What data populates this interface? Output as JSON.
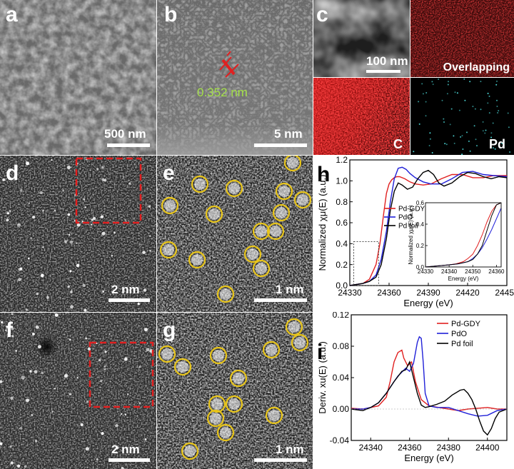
{
  "panels": {
    "a": {
      "label": "a",
      "scalebar": "500 nm"
    },
    "b": {
      "label": "b",
      "scalebar": "5 nm",
      "lattice": "0.352 nm"
    },
    "c": {
      "label": "c",
      "scalebar": "100 nm",
      "maps": [
        "Overlapping",
        "C",
        "Pd"
      ]
    },
    "d": {
      "label": "d",
      "scalebar": "2 nm"
    },
    "e": {
      "label": "e",
      "scalebar": "1 nm"
    },
    "f": {
      "label": "f",
      "scalebar": "2 nm"
    },
    "g": {
      "label": "g",
      "scalebar": "1 nm"
    },
    "h": {
      "label": "h"
    },
    "i": {
      "label": "i"
    }
  },
  "colors": {
    "pd_gdy": "#e02020",
    "pdo": "#2020d8",
    "pd_foil": "#000000",
    "atom_circle": "#e8c51a",
    "box": "#e02020"
  },
  "chart_data": [
    {
      "type": "line",
      "panel": "h",
      "xlabel": "Energy (eV)",
      "ylabel": "Normalized χμ(E) (a.u.)",
      "xlim": [
        24330,
        24450
      ],
      "ylim": [
        0.0,
        1.2
      ],
      "xticks": [
        24330,
        24360,
        24390,
        24420,
        24450
      ],
      "yticks": [
        "0.0",
        "0.2",
        "0.4",
        "0.6",
        "0.8",
        "1.0",
        "1.2"
      ],
      "legend": [
        "Pd-GDY",
        "PdO",
        "Pd foil"
      ],
      "series": [
        {
          "name": "Pd-GDY",
          "x": [
            24330,
            24340,
            24345,
            24350,
            24353,
            24356,
            24358,
            24360,
            24362,
            24364,
            24366,
            24368,
            24372,
            24376,
            24380,
            24386,
            24392,
            24400,
            24408,
            24416,
            24424,
            24432,
            24440,
            24450
          ],
          "y": [
            0.0,
            0.02,
            0.06,
            0.2,
            0.4,
            0.7,
            0.88,
            0.97,
            1.01,
            1.03,
            1.04,
            1.04,
            1.02,
            0.99,
            0.97,
            0.96,
            0.97,
            1.02,
            1.06,
            1.06,
            1.03,
            1.03,
            1.05,
            1.05
          ]
        },
        {
          "name": "PdO",
          "x": [
            24330,
            24340,
            24345,
            24350,
            24354,
            24358,
            24361,
            24364,
            24367,
            24370,
            24373,
            24376,
            24380,
            24386,
            24392,
            24400,
            24408,
            24416,
            24424,
            24432,
            24440,
            24450
          ],
          "y": [
            0.0,
            0.02,
            0.04,
            0.1,
            0.25,
            0.52,
            0.8,
            1.02,
            1.12,
            1.13,
            1.11,
            1.07,
            1.03,
            0.99,
            0.97,
            0.97,
            1.02,
            1.08,
            1.09,
            1.06,
            1.05,
            1.04
          ]
        },
        {
          "name": "Pd foil",
          "x": [
            24330,
            24340,
            24345,
            24350,
            24354,
            24358,
            24361,
            24364,
            24367,
            24370,
            24374,
            24378,
            24382,
            24386,
            24390,
            24394,
            24398,
            24402,
            24408,
            24414,
            24420,
            24426,
            24432,
            24438,
            24444,
            24450
          ],
          "y": [
            0.0,
            0.02,
            0.04,
            0.08,
            0.2,
            0.45,
            0.72,
            0.9,
            0.98,
            0.96,
            0.92,
            0.94,
            1.02,
            1.08,
            1.1,
            1.06,
            0.98,
            0.95,
            0.98,
            1.04,
            1.08,
            1.07,
            1.04,
            1.02,
            1.04,
            1.03
          ]
        }
      ],
      "inset": {
        "xlabel": "Energy (eV)",
        "ylabel": "Normalized χμ(E) (a.u.)",
        "xlim": [
          24330,
          24362
        ],
        "ylim": [
          0.0,
          0.6
        ],
        "xticks": [
          24330,
          24340,
          24350,
          24360
        ],
        "yticks": [
          "0.0",
          "0.2",
          "0.4",
          "0.6"
        ],
        "series": [
          {
            "name": "Pd-GDY",
            "x": [
              24330,
              24335,
              24340,
              24343,
              24346,
              24348,
              24350,
              24352,
              24354,
              24356,
              24358,
              24360,
              24362
            ],
            "y": [
              0.0,
              0.01,
              0.02,
              0.03,
              0.05,
              0.08,
              0.12,
              0.2,
              0.3,
              0.42,
              0.52,
              0.58,
              0.6
            ]
          },
          {
            "name": "PdO",
            "x": [
              24330,
              24335,
              24340,
              24344,
              24348,
              24350,
              24352,
              24354,
              24356,
              24358,
              24360,
              24362
            ],
            "y": [
              0.0,
              0.01,
              0.02,
              0.03,
              0.05,
              0.08,
              0.12,
              0.18,
              0.26,
              0.35,
              0.45,
              0.55
            ]
          },
          {
            "name": "Pd foil",
            "x": [
              24330,
              24335,
              24340,
              24344,
              24348,
              24350,
              24352,
              24354,
              24356,
              24358,
              24360,
              24362
            ],
            "y": [
              0.0,
              0.01,
              0.02,
              0.03,
              0.05,
              0.07,
              0.12,
              0.2,
              0.34,
              0.48,
              0.58,
              0.6
            ]
          }
        ]
      }
    },
    {
      "type": "line",
      "panel": "i",
      "xlabel": "Energy (eV)",
      "ylabel": "Deriv. xu(E) (a.u.)",
      "xlim": [
        24330,
        24410
      ],
      "ylim": [
        -0.04,
        0.12
      ],
      "xticks": [
        24340,
        24360,
        24380,
        24400
      ],
      "yticks": [
        "-0.04",
        "0.00",
        "0.04",
        "0.08",
        "0.12"
      ],
      "legend": [
        "Pd-GDY",
        "PdO",
        "Pd foil"
      ],
      "series": [
        {
          "name": "Pd-GDY",
          "x": [
            24330,
            24336,
            24340,
            24344,
            24348,
            24350,
            24352,
            24354,
            24356,
            24357,
            24359,
            24361,
            24363,
            24366,
            24370,
            24375,
            24380,
            24385,
            24390,
            24395,
            24400,
            24405,
            24410
          ],
          "y": [
            0.001,
            0.0,
            0.002,
            0.004,
            0.015,
            0.035,
            0.06,
            0.072,
            0.075,
            0.065,
            0.055,
            0.06,
            0.035,
            0.012,
            0.004,
            0.002,
            0.0,
            -0.002,
            0.0,
            0.001,
            0.002,
            0.0,
            0.0
          ]
        },
        {
          "name": "PdO",
          "x": [
            24330,
            24336,
            24340,
            24344,
            24348,
            24352,
            24354,
            24356,
            24358,
            24360,
            24362,
            24364,
            24365,
            24366,
            24367,
            24368,
            24370,
            24374,
            24380,
            24385,
            24390,
            24395,
            24400,
            24405,
            24410
          ],
          "y": [
            0.0,
            0.0,
            0.002,
            0.008,
            0.02,
            0.035,
            0.042,
            0.047,
            0.052,
            0.048,
            0.058,
            0.085,
            0.092,
            0.09,
            0.06,
            0.02,
            0.004,
            0.002,
            0.002,
            -0.002,
            -0.006,
            -0.009,
            -0.008,
            -0.002,
            0.0
          ]
        },
        {
          "name": "Pd foil",
          "x": [
            24330,
            24336,
            24340,
            24344,
            24348,
            24352,
            24356,
            24358,
            24360,
            24362,
            24364,
            24366,
            24368,
            24370,
            24374,
            24378,
            24382,
            24386,
            24388,
            24390,
            24392,
            24394,
            24396,
            24398,
            24400,
            24402,
            24404,
            24406,
            24410
          ],
          "y": [
            0.0,
            -0.002,
            0.002,
            0.008,
            0.02,
            0.035,
            0.048,
            0.05,
            0.06,
            0.04,
            0.02,
            0.005,
            0.002,
            0.003,
            0.006,
            0.01,
            0.018,
            0.024,
            0.025,
            0.02,
            0.012,
            0.0,
            -0.015,
            -0.028,
            -0.033,
            -0.025,
            -0.012,
            -0.004,
            0.0
          ]
        }
      ]
    }
  ]
}
